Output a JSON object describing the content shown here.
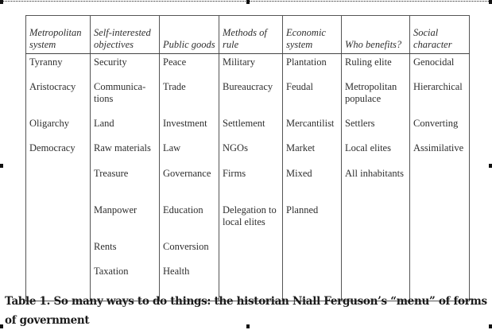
{
  "table": {
    "headers": [
      "Metropolitan system",
      "Self-interested objectives",
      "Public goods",
      "Methods of rule",
      "Economic system",
      "Who benefits?",
      "Social character"
    ],
    "rows": [
      [
        "Tyranny",
        "Security",
        "Peace",
        "Military",
        "Plantation",
        "Ruling elite",
        "Genocidal"
      ],
      [
        "Aristocracy",
        "Communica-tions",
        "Trade",
        "Bureaucracy",
        "Feudal",
        "Metropolitan populace",
        "Hierarchical"
      ],
      [
        "Oligarchy",
        "Land",
        "Investment",
        "Settlement",
        "Mercantilist",
        "Settlers",
        "Converting"
      ],
      [
        "Democracy",
        "Raw materials",
        "Law",
        "NGOs",
        "Market",
        "Local elites",
        "Assimilative"
      ],
      [
        "",
        "Treasure",
        "Governance",
        "Firms",
        "Mixed",
        "All inhabitants",
        ""
      ],
      [
        "",
        "Manpower",
        "Education",
        "Delegation to local elites",
        "Planned",
        "",
        ""
      ],
      [
        "",
        "Rents",
        "Conversion",
        "",
        "",
        "",
        ""
      ],
      [
        "",
        "Taxation",
        "Health",
        "",
        "",
        "",
        ""
      ]
    ]
  },
  "caption": "Table 1. So many ways to do things: the historian Niall Ferguson’s “menu” of forms of government"
}
